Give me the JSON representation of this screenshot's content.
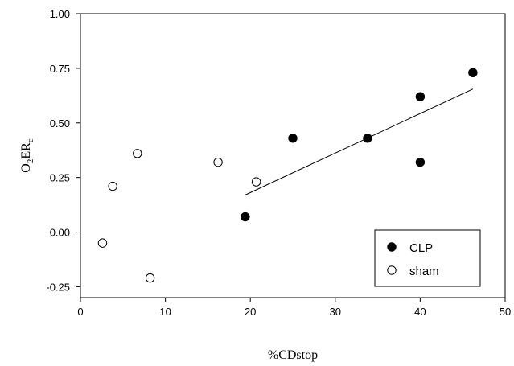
{
  "chart_data": {
    "type": "scatter",
    "xlabel": "%CDstop",
    "ylabel": {
      "main": "O",
      "sub1": "2",
      "mid": "ER",
      "sub2": "c"
    },
    "xlim": [
      0,
      50
    ],
    "ylim": [
      -0.3,
      1.0
    ],
    "x_ticks": [
      0,
      10,
      20,
      30,
      40,
      50
    ],
    "y_ticks": [
      -0.25,
      0.0,
      0.25,
      0.5,
      0.75,
      1.0
    ],
    "x_tick_labels": [
      "0",
      "10",
      "20",
      "30",
      "40",
      "50"
    ],
    "y_tick_labels": [
      "-0.25",
      "0.00",
      "0.25",
      "0.50",
      "0.75",
      "1.00"
    ],
    "grid": false,
    "legend_position": "bottom-right",
    "series": [
      {
        "name": "CLP",
        "marker": "filled-circle",
        "color": "#000000",
        "points": [
          {
            "x": 19.4,
            "y": 0.07
          },
          {
            "x": 25.0,
            "y": 0.43
          },
          {
            "x": 33.8,
            "y": 0.43
          },
          {
            "x": 40.0,
            "y": 0.62
          },
          {
            "x": 40.0,
            "y": 0.32
          },
          {
            "x": 46.2,
            "y": 0.73
          }
        ]
      },
      {
        "name": "sham",
        "marker": "open-circle",
        "color": "#000000",
        "points": [
          {
            "x": 2.6,
            "y": -0.05
          },
          {
            "x": 3.8,
            "y": 0.21
          },
          {
            "x": 6.7,
            "y": 0.36
          },
          {
            "x": 8.2,
            "y": -0.21
          },
          {
            "x": 16.2,
            "y": 0.32
          },
          {
            "x": 20.7,
            "y": 0.23
          }
        ]
      }
    ],
    "regression_line": {
      "series": "CLP",
      "x1": 19.4,
      "y1": 0.17,
      "x2": 46.2,
      "y2": 0.655
    }
  }
}
